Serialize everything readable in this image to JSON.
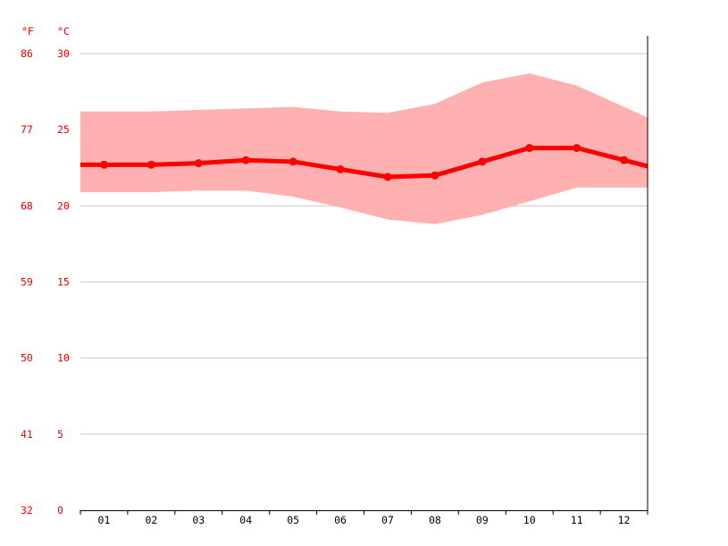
{
  "chart_data": {
    "type": "line",
    "units": {
      "fahrenheit": "°F",
      "celsius": "°C"
    },
    "y_celsius_ticks": [
      "0",
      "5",
      "10",
      "15",
      "20",
      "25",
      "30"
    ],
    "y_fahrenheit_ticks": [
      "32",
      "41",
      "50",
      "59",
      "68",
      "77",
      "86"
    ],
    "ylim": [
      0,
      30
    ],
    "categories": [
      "01",
      "02",
      "03",
      "04",
      "05",
      "06",
      "07",
      "08",
      "09",
      "10",
      "11",
      "12"
    ],
    "series": [
      {
        "role": "average",
        "values": [
          22.7,
          22.7,
          22.8,
          23.0,
          22.9,
          22.4,
          21.9,
          22.0,
          22.9,
          23.8,
          23.8,
          23.0
        ]
      },
      {
        "role": "max",
        "values": [
          26.2,
          26.2,
          26.3,
          26.4,
          26.5,
          26.2,
          26.1,
          26.7,
          28.1,
          28.7,
          27.9,
          26.5
        ]
      },
      {
        "role": "min",
        "values": [
          20.9,
          20.9,
          21.0,
          21.0,
          20.6,
          19.9,
          19.1,
          18.8,
          19.4,
          20.3,
          21.2,
          21.2
        ]
      }
    ],
    "colors": {
      "line": "#ff0000",
      "band": "#ffb0b0",
      "grid": "#c8c8c8",
      "label": "#ee0000",
      "tick_text": "#000000"
    },
    "grid": true
  }
}
